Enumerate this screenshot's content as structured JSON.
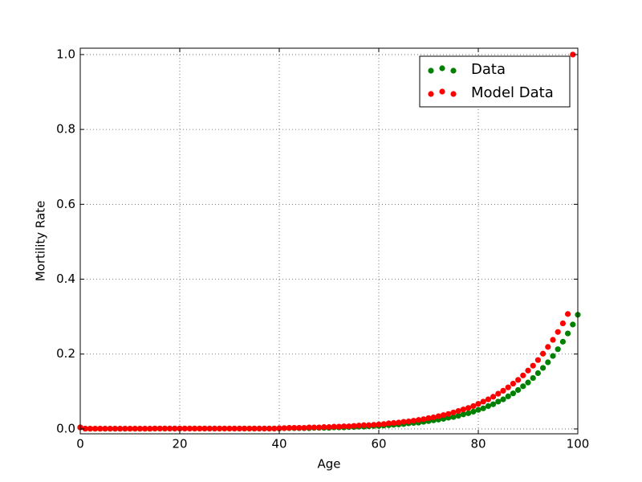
{
  "chart_data": {
    "type": "scatter",
    "xlabel": "Age",
    "ylabel": "Mortility Rate",
    "xlim": [
      0,
      100
    ],
    "ylim": [
      -0.013,
      1.017
    ],
    "xticks": [
      0,
      20,
      40,
      60,
      80,
      100
    ],
    "yticks": [
      {
        "value": 0,
        "label": "0.0"
      },
      0.2,
      0.4,
      0.6,
      0.8,
      {
        "value": 1,
        "label": "1.0"
      }
    ],
    "grid": true,
    "legend": "upper right",
    "series": [
      {
        "name": "Data",
        "color": "#008000",
        "x": [
          0,
          1,
          2,
          3,
          4,
          5,
          6,
          7,
          8,
          9,
          10,
          11,
          12,
          13,
          14,
          15,
          16,
          17,
          18,
          19,
          20,
          21,
          22,
          23,
          24,
          25,
          26,
          27,
          28,
          29,
          30,
          31,
          32,
          33,
          34,
          35,
          36,
          37,
          38,
          39,
          40,
          41,
          42,
          43,
          44,
          45,
          46,
          47,
          48,
          49,
          50,
          51,
          52,
          53,
          54,
          55,
          56,
          57,
          58,
          59,
          60,
          61,
          62,
          63,
          64,
          65,
          66,
          67,
          68,
          69,
          70,
          71,
          72,
          73,
          74,
          75,
          76,
          77,
          78,
          79,
          80,
          81,
          82,
          83,
          84,
          85,
          86,
          87,
          88,
          89,
          90,
          91,
          92,
          93,
          94,
          95,
          96,
          97,
          98,
          99,
          100
        ],
        "values": [
          0.004,
          0.0005,
          0.0005,
          0.0005,
          0.0005,
          0.0005,
          0.0005,
          0.0005,
          0.0005,
          0.0005,
          0.0005,
          0.0005,
          0.0005,
          0.0005,
          0.0005,
          0.001,
          0.001,
          0.001,
          0.001,
          0.001,
          0.001,
          0.001,
          0.001,
          0.001,
          0.001,
          0.001,
          0.001,
          0.001,
          0.001,
          0.001,
          0.001,
          0.001,
          0.001,
          0.001,
          0.001,
          0.001,
          0.001,
          0.001,
          0.001,
          0.001,
          0.001,
          0.002,
          0.002,
          0.002,
          0.002,
          0.002,
          0.002,
          0.003,
          0.003,
          0.003,
          0.003,
          0.004,
          0.004,
          0.004,
          0.005,
          0.005,
          0.006,
          0.006,
          0.007,
          0.008,
          0.008,
          0.009,
          0.01,
          0.011,
          0.012,
          0.013,
          0.015,
          0.016,
          0.017,
          0.019,
          0.021,
          0.023,
          0.025,
          0.027,
          0.03,
          0.032,
          0.035,
          0.039,
          0.042,
          0.046,
          0.051,
          0.055,
          0.061,
          0.066,
          0.073,
          0.079,
          0.087,
          0.095,
          0.104,
          0.114,
          0.124,
          0.136,
          0.149,
          0.163,
          0.178,
          0.195,
          0.213,
          0.233,
          0.255,
          0.279,
          0.305
        ]
      },
      {
        "name": "Model Data",
        "color": "#ff0000",
        "x": [
          0,
          1,
          2,
          3,
          4,
          5,
          6,
          7,
          8,
          9,
          10,
          11,
          12,
          13,
          14,
          15,
          16,
          17,
          18,
          19,
          20,
          21,
          22,
          23,
          24,
          25,
          26,
          27,
          28,
          29,
          30,
          31,
          32,
          33,
          34,
          35,
          36,
          37,
          38,
          39,
          40,
          41,
          42,
          43,
          44,
          45,
          46,
          47,
          48,
          49,
          50,
          51,
          52,
          53,
          54,
          55,
          56,
          57,
          58,
          59,
          60,
          61,
          62,
          63,
          64,
          65,
          66,
          67,
          68,
          69,
          70,
          71,
          72,
          73,
          74,
          75,
          76,
          77,
          78,
          79,
          80,
          81,
          82,
          83,
          84,
          85,
          86,
          87,
          88,
          89,
          90,
          91,
          92,
          93,
          94,
          95,
          96,
          97,
          98,
          99
        ],
        "values": [
          0.004,
          0.0008,
          0.0008,
          0.0008,
          0.0008,
          0.0008,
          0.0008,
          0.0008,
          0.0008,
          0.0008,
          0.0008,
          0.0008,
          0.0008,
          0.0008,
          0.0008,
          0.001,
          0.001,
          0.001,
          0.001,
          0.001,
          0.001,
          0.001,
          0.001,
          0.001,
          0.001,
          0.001,
          0.001,
          0.001,
          0.001,
          0.001,
          0.001,
          0.001,
          0.001,
          0.001,
          0.001,
          0.001,
          0.001,
          0.001,
          0.001,
          0.001,
          0.002,
          0.002,
          0.003,
          0.003,
          0.003,
          0.003,
          0.004,
          0.004,
          0.004,
          0.005,
          0.005,
          0.006,
          0.006,
          0.007,
          0.007,
          0.008,
          0.009,
          0.01,
          0.01,
          0.011,
          0.012,
          0.013,
          0.015,
          0.016,
          0.017,
          0.019,
          0.02,
          0.022,
          0.024,
          0.026,
          0.029,
          0.031,
          0.034,
          0.037,
          0.04,
          0.044,
          0.048,
          0.052,
          0.056,
          0.061,
          0.067,
          0.073,
          0.079,
          0.086,
          0.094,
          0.102,
          0.111,
          0.121,
          0.131,
          0.143,
          0.156,
          0.169,
          0.184,
          0.201,
          0.219,
          0.238,
          0.259,
          0.282,
          0.307,
          1.0
        ]
      }
    ]
  }
}
